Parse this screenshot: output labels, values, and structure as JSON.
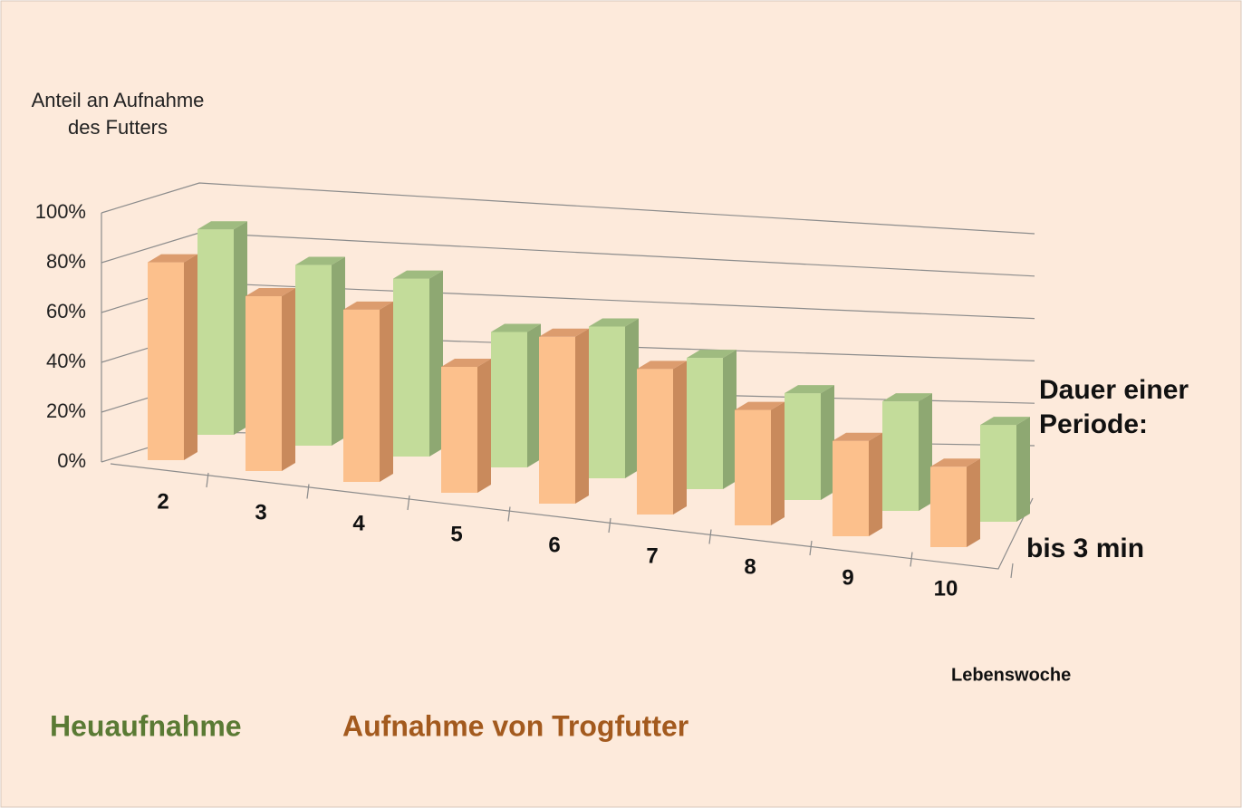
{
  "chart_data": {
    "type": "bar3d",
    "y_label_lines": [
      "Anteil an Aufnahme",
      "des Futters"
    ],
    "x_label": "Lebenswoche",
    "depth_label_lines": [
      "Dauer einer",
      "Periode:"
    ],
    "depth_category": "bis 3 min",
    "categories": [
      "2",
      "3",
      "4",
      "5",
      "6",
      "7",
      "8",
      "9",
      "10"
    ],
    "series": [
      {
        "name": "Heuaufnahme",
        "color": "#c3dc9a",
        "values": [
          84,
          75,
          75,
          58,
          66,
          58,
          48,
          50,
          45
        ]
      },
      {
        "name": "Aufnahme von Trogfutter",
        "color": "#fcc08c",
        "values": [
          78,
          70,
          70,
          52,
          70,
          62,
          50,
          42,
          36
        ]
      }
    ],
    "ylim": [
      0,
      100
    ],
    "yticks": [
      {
        "value": 0,
        "label": "0%"
      },
      {
        "value": 20,
        "label": "20%"
      },
      {
        "value": 40,
        "label": "40%"
      },
      {
        "value": 60,
        "label": "60%"
      },
      {
        "value": 80,
        "label": "80%"
      },
      {
        "value": 100,
        "label": "100%"
      }
    ],
    "grid": true
  }
}
